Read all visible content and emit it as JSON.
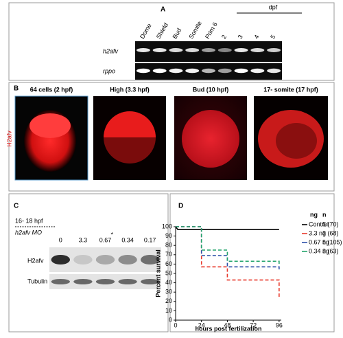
{
  "panel_a": {
    "label": "A",
    "lanes": [
      "Dome",
      "Shield",
      "Bud",
      "Somite",
      "Prim 6",
      "2",
      "3",
      "4",
      "5"
    ],
    "dpf": "dpf",
    "genes": [
      "h2afv",
      "rppo"
    ]
  },
  "panel_b": {
    "label": "B",
    "stain": "H2afv",
    "titles": [
      "64 cells (2 hpf)",
      "High (3.3 hpf)",
      "Bud (10 hpf)",
      "17- somite (17 hpf)"
    ]
  },
  "panel_c": {
    "label": "C",
    "stage": "16- 18 hpf",
    "treatment": "h2afv MO",
    "doses": [
      "0",
      "3.3",
      "0.67",
      "0.34",
      "0.17"
    ],
    "mark": "*",
    "proteins": [
      "H2afv",
      "Tubulin"
    ]
  },
  "chart_data": {
    "type": "line",
    "label": "D",
    "xlabel": "hours post fertilization",
    "ylabel": "Percent survival",
    "xlim": [
      0,
      98
    ],
    "ylim": [
      0,
      100
    ],
    "xticks": [
      0,
      24,
      48,
      72,
      96
    ],
    "yticks": [
      0,
      10,
      20,
      30,
      40,
      50,
      60,
      70,
      80,
      90,
      100
    ],
    "legend_headers": [
      "ng",
      "n"
    ],
    "series": [
      {
        "name": "Control",
        "n": "5 (70)",
        "color": "#000000",
        "dashed": false,
        "x": [
          0,
          2,
          96
        ],
        "values": [
          100,
          97,
          97
        ]
      },
      {
        "name": "3.3 ng",
        "n": "3 (68)",
        "color": "#e8392b",
        "dashed": true,
        "x": [
          0,
          24,
          24,
          48,
          48,
          96,
          96
        ],
        "values": [
          100,
          100,
          57,
          57,
          43,
          43,
          25
        ]
      },
      {
        "name": "0.67 ng",
        "n": "5 (105)",
        "color": "#2b4fa8",
        "dashed": true,
        "x": [
          0,
          24,
          24,
          48,
          48,
          96,
          96
        ],
        "values": [
          100,
          100,
          69,
          69,
          57,
          57,
          54
        ]
      },
      {
        "name": "0.34 ng",
        "n": "3 (63)",
        "color": "#22a36b",
        "dashed": true,
        "x": [
          0,
          24,
          24,
          48,
          48,
          96,
          96
        ],
        "values": [
          100,
          100,
          75,
          75,
          63,
          63,
          60
        ]
      }
    ]
  }
}
